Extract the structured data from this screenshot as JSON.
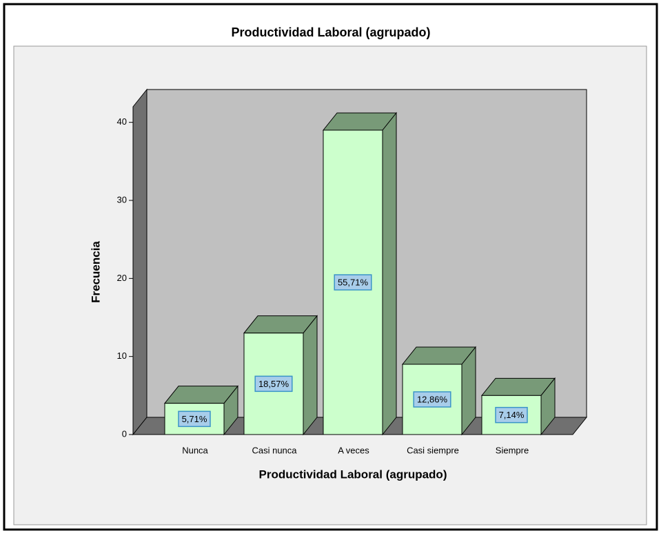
{
  "chart_data": {
    "type": "bar3d",
    "title": "Productividad Laboral (agrupado)",
    "x_label": "Productividad Laboral (agrupado)",
    "y_label": "Frecuencia",
    "categories": [
      "Nunca",
      "Casi nunca",
      "A veces",
      "Casi siempre",
      "Siempre"
    ],
    "values": [
      4,
      13,
      39,
      9,
      5
    ],
    "percent_labels": [
      "5,71%",
      "18,57%",
      "55,71%",
      "12,86%",
      "7,14%"
    ],
    "color": "#ccffcc",
    "ylim": [
      0,
      42
    ],
    "yticks": [
      0,
      10,
      20,
      30,
      40
    ]
  }
}
